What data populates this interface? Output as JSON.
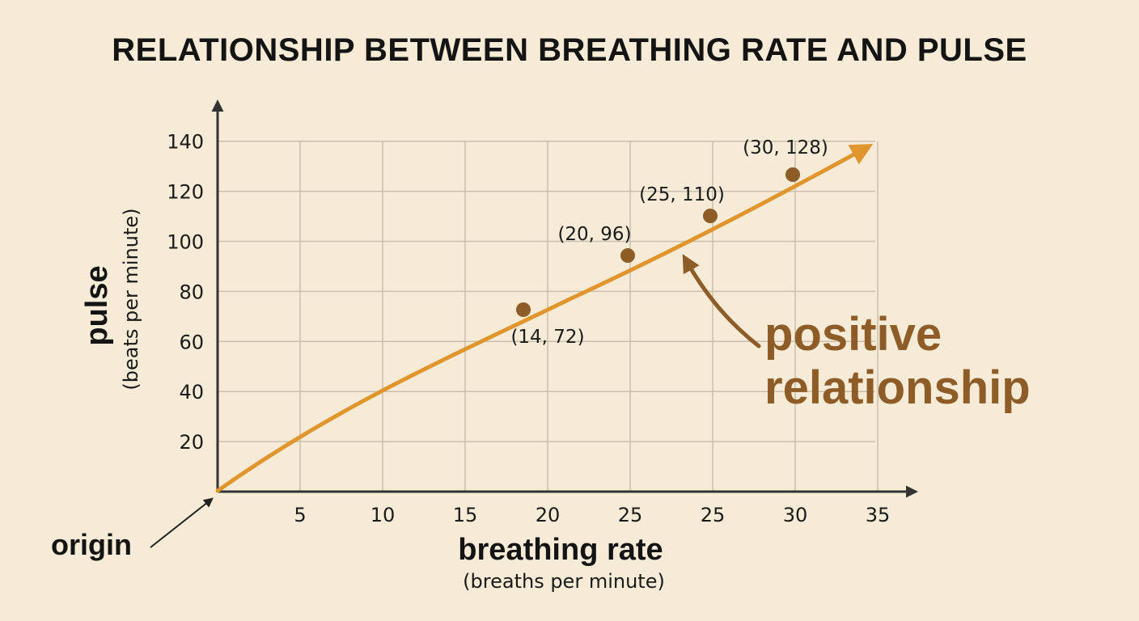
{
  "chart_data": {
    "type": "line",
    "title": "RELATIONSHIP BETWEEN BREATHING RATE AND PULSE",
    "xlabel": "breathing rate",
    "xlabel_units": "(breaths per minute)",
    "ylabel": "pulse",
    "ylabel_units": "(beats per minute)",
    "x_tick_labels": [
      "5",
      "10",
      "15",
      "20",
      "25",
      "25",
      "30",
      "35"
    ],
    "y_tick_labels": [
      "20",
      "40",
      "60",
      "80",
      "100",
      "120",
      "140"
    ],
    "xlim": [
      0,
      40
    ],
    "ylim": [
      0,
      140
    ],
    "grid": true,
    "points": [
      {
        "x": 14,
        "y": 72,
        "label": "(14, 72)"
      },
      {
        "x": 20,
        "y": 96,
        "label": "(20, 96)"
      },
      {
        "x": 25,
        "y": 110,
        "label": "(25, 110)"
      },
      {
        "x": 30,
        "y": 128,
        "label": "(30, 128)"
      }
    ],
    "annotations": {
      "trend_line1": "positive",
      "trend_line2": "relationship",
      "origin": "origin"
    },
    "colors": {
      "curve": "#e0962d",
      "points": "#8e5c26",
      "callout": "#8e5c26",
      "background": "#f5ebd6"
    }
  }
}
